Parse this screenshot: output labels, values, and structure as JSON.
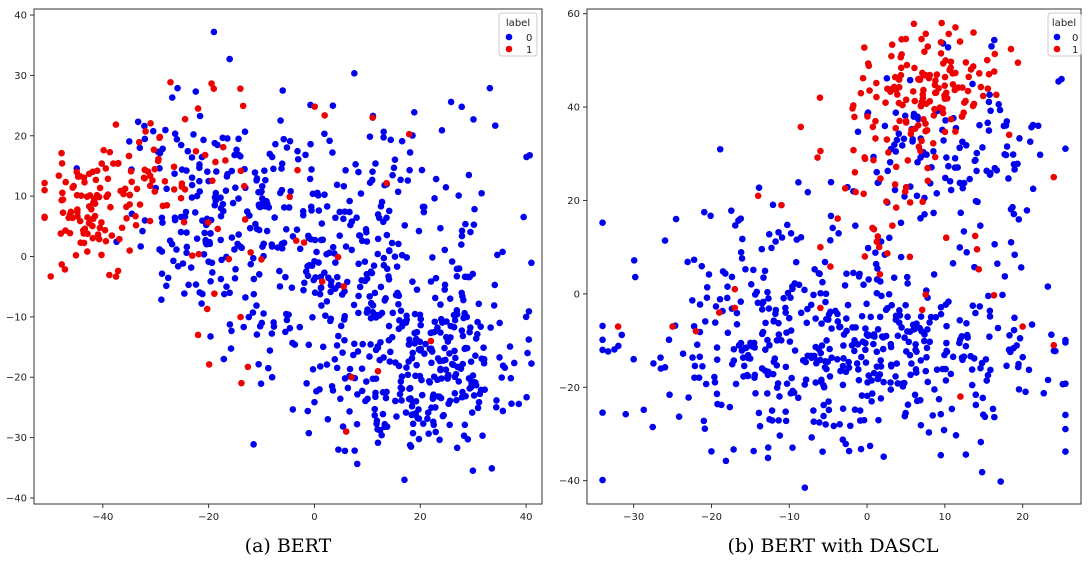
{
  "panels": [
    {
      "chart_data": {
        "type": "scatter",
        "caption": "(a) BERT",
        "xlim": [
          -53,
          43
        ],
        "ylim": [
          -41,
          41
        ],
        "xticks": [
          -40,
          -20,
          0,
          20,
          40
        ],
        "yticks": [
          -40,
          -30,
          -20,
          -10,
          0,
          10,
          20,
          30,
          40
        ],
        "legend": {
          "title": "label",
          "position": "top-right",
          "entries": [
            "0",
            "1"
          ]
        },
        "colors": {
          "0": "#0000ee",
          "1": "#ee0000"
        },
        "series": [
          {
            "label": "0",
            "clusters": [
              {
                "cx": 22,
                "cy": -18,
                "sx": 8,
                "sy": 7,
                "n": 230
              },
              {
                "cx": 5,
                "cy": 2,
                "sx": 14,
                "sy": 11,
                "n": 320
              },
              {
                "cx": -20,
                "cy": 8,
                "sx": 9,
                "sy": 9,
                "n": 150
              },
              {
                "cx": 10,
                "cy": -25,
                "sx": 9,
                "sy": 5,
                "n": 40
              }
            ],
            "outliers": [
              [
                -19,
                37.2
              ],
              [
                17,
                -37
              ],
              [
                -6,
                27.5
              ],
              [
                -33,
                18
              ],
              [
                35,
                -11
              ],
              [
                40,
                -10
              ],
              [
                -8,
                -20
              ]
            ]
          },
          {
            "label": "1",
            "clusters": [
              {
                "cx": -42,
                "cy": 8,
                "sx": 5,
                "sy": 5,
                "n": 100
              },
              {
                "cx": -27,
                "cy": 14,
                "sx": 6,
                "sy": 5,
                "n": 40
              },
              {
                "cx": -10,
                "cy": 5,
                "sx": 14,
                "sy": 12,
                "n": 30
              }
            ],
            "outliers": [
              [
                -14,
                27.8
              ],
              [
                -22,
                24.5
              ],
              [
                11,
                23
              ],
              [
                12,
                -19
              ],
              [
                6,
                -29
              ],
              [
                22,
                -14
              ],
              [
                7,
                -20
              ],
              [
                -22,
                -13
              ]
            ]
          }
        ]
      }
    },
    {
      "chart_data": {
        "type": "scatter",
        "caption": "(b) BERT with DASCL",
        "xlim": [
          -36,
          27.5
        ],
        "ylim": [
          -45,
          61
        ],
        "xticks": [
          -30,
          -20,
          -10,
          0,
          10,
          20
        ],
        "yticks": [
          -40,
          -20,
          0,
          20,
          40,
          60
        ],
        "legend": {
          "title": "label",
          "position": "top-right",
          "entries": [
            "0",
            "1"
          ]
        },
        "colors": {
          "0": "#0000ee",
          "1": "#ee0000"
        },
        "series": [
          {
            "label": "0",
            "clusters": [
              {
                "cx": -3,
                "cy": -13,
                "sx": 13,
                "sy": 10,
                "n": 480
              },
              {
                "cx": 10,
                "cy": 30,
                "sx": 7,
                "sy": 10,
                "n": 130
              },
              {
                "cx": -14,
                "cy": 6,
                "sx": 6,
                "sy": 8,
                "n": 50
              }
            ],
            "outliers": [
              [
                -8,
                -41.5
              ],
              [
                22,
                36
              ],
              [
                25,
                46
              ],
              [
                16,
                53
              ],
              [
                -34,
                -12
              ],
              [
                -30,
                -14
              ]
            ]
          },
          {
            "label": "1",
            "clusters": [
              {
                "cx": 8,
                "cy": 45,
                "sx": 4,
                "sy": 5,
                "n": 120
              },
              {
                "cx": 3,
                "cy": 30,
                "sx": 5,
                "sy": 7,
                "n": 45
              },
              {
                "cx": 4,
                "cy": 8,
                "sx": 6,
                "sy": 8,
                "n": 20
              }
            ],
            "outliers": [
              [
                -32,
                -7
              ],
              [
                -25,
                -7
              ],
              [
                -22,
                -8
              ],
              [
                -17,
                -3
              ],
              [
                -17,
                1
              ],
              [
                -6,
                -3
              ],
              [
                -6,
                10
              ],
              [
                12,
                -22
              ],
              [
                20,
                -7
              ],
              [
                24,
                -11
              ],
              [
                24,
                25
              ],
              [
                -14,
                21
              ],
              [
                -11,
                19
              ],
              [
                -19,
                -4
              ]
            ]
          }
        ]
      }
    }
  ]
}
